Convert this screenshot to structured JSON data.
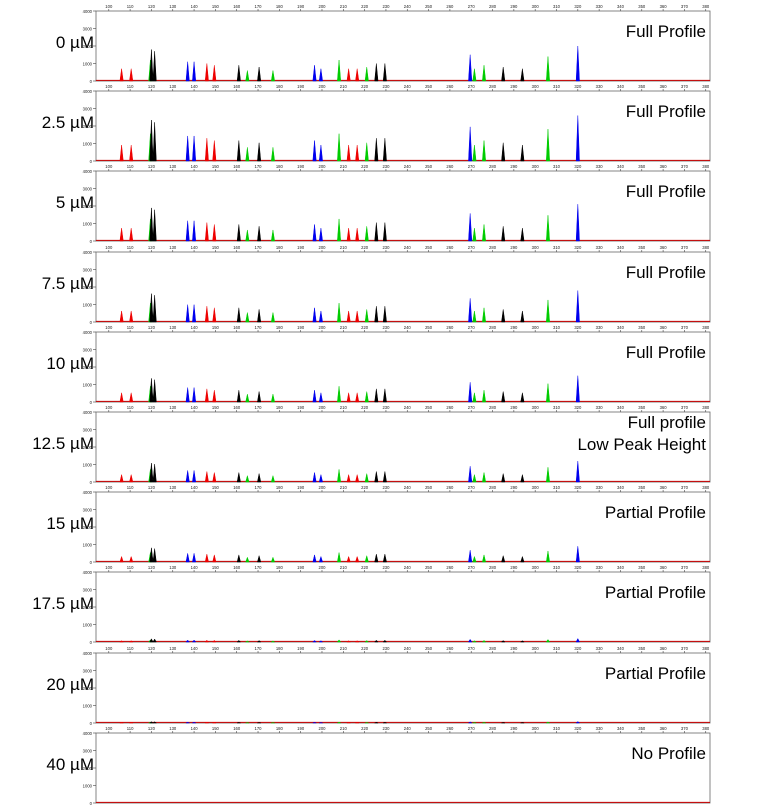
{
  "colors": {
    "blue": "#0000ee",
    "green": "#00cc00",
    "black": "#000000",
    "red": "#ee0000",
    "baseline": "#cc0000"
  },
  "chart_data": {
    "type": "electropherogram",
    "x_ticks": [
      100,
      110,
      120,
      130,
      140,
      150,
      160,
      170,
      180,
      190,
      200,
      210,
      220,
      230,
      240,
      250,
      260,
      270,
      280,
      290,
      300,
      310,
      320,
      330,
      340,
      350,
      360,
      370,
      380
    ],
    "xlim": [
      94,
      382
    ],
    "y_ticks": [
      0,
      1000,
      2000,
      3000,
      4000
    ],
    "ylim": [
      0,
      4000
    ],
    "panels": [
      {
        "concentration": "0 µM",
        "status": [
          "Full Profile"
        ],
        "scale": 1.0
      },
      {
        "concentration": "2.5 µM",
        "status": [
          "Full Profile"
        ],
        "scale": 1.3
      },
      {
        "concentration": "5 µM",
        "status": [
          "Full Profile"
        ],
        "scale": 1.05
      },
      {
        "concentration": "7.5 µM",
        "status": [
          "Full Profile"
        ],
        "scale": 0.9
      },
      {
        "concentration": "10 µM",
        "status": [
          "Full Profile"
        ],
        "scale": 0.75
      },
      {
        "concentration": "12.5 µM",
        "status": [
          "Full profile",
          "Low Peak Height"
        ],
        "scale": 0.6
      },
      {
        "concentration": "15 µM",
        "status": [
          "Partial Profile"
        ],
        "scale": 0.45
      },
      {
        "concentration": "17.5 µM",
        "status": [
          "Partial Profile"
        ],
        "scale": 0.1
      },
      {
        "concentration": "20 µM",
        "status": [
          "Partial Profile"
        ],
        "scale": 0.04
      },
      {
        "concentration": "40 µM",
        "status": [
          "No Profile"
        ],
        "scale": 0.0
      }
    ],
    "peaks_reference": [
      {
        "x": 106,
        "h": 700,
        "color": "red"
      },
      {
        "x": 110.5,
        "h": 700,
        "color": "red"
      },
      {
        "x": 119.5,
        "h": 1200,
        "color": "green"
      },
      {
        "x": 120,
        "h": 1800,
        "color": "black"
      },
      {
        "x": 121.5,
        "h": 1700,
        "color": "black"
      },
      {
        "x": 137,
        "h": 1100,
        "color": "blue"
      },
      {
        "x": 140,
        "h": 1100,
        "color": "blue"
      },
      {
        "x": 146,
        "h": 1000,
        "color": "red"
      },
      {
        "x": 149.5,
        "h": 900,
        "color": "red"
      },
      {
        "x": 161,
        "h": 900,
        "color": "black"
      },
      {
        "x": 165,
        "h": 600,
        "color": "green"
      },
      {
        "x": 170.5,
        "h": 800,
        "color": "black"
      },
      {
        "x": 177,
        "h": 600,
        "color": "green"
      },
      {
        "x": 196.5,
        "h": 900,
        "color": "blue"
      },
      {
        "x": 199.5,
        "h": 700,
        "color": "blue"
      },
      {
        "x": 208,
        "h": 1200,
        "color": "green"
      },
      {
        "x": 212.5,
        "h": 700,
        "color": "red"
      },
      {
        "x": 216.5,
        "h": 700,
        "color": "red"
      },
      {
        "x": 221,
        "h": 800,
        "color": "green"
      },
      {
        "x": 225.5,
        "h": 1000,
        "color": "black"
      },
      {
        "x": 229.5,
        "h": 1000,
        "color": "black"
      },
      {
        "x": 269.5,
        "h": 1500,
        "color": "blue"
      },
      {
        "x": 271.5,
        "h": 700,
        "color": "green"
      },
      {
        "x": 276,
        "h": 900,
        "color": "green"
      },
      {
        "x": 285,
        "h": 800,
        "color": "black"
      },
      {
        "x": 294,
        "h": 700,
        "color": "black"
      },
      {
        "x": 306,
        "h": 1400,
        "color": "green"
      },
      {
        "x": 320,
        "h": 2000,
        "color": "blue"
      }
    ]
  }
}
